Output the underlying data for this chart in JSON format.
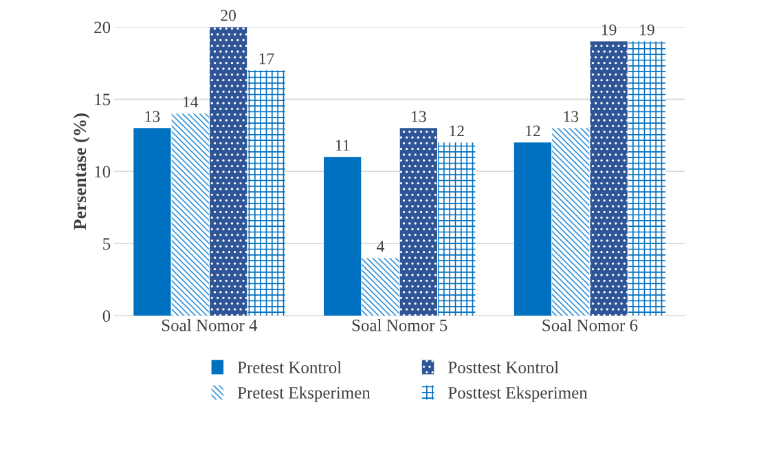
{
  "chart_data": {
    "type": "bar",
    "ylabel": "Persentase (%)",
    "categories": [
      "Soal Nomor 4",
      "Soal Nomor 5",
      "Soal Nomor 6"
    ],
    "series": [
      {
        "name": "Pretest Kontrol",
        "color": "#0070c0",
        "values": [
          13,
          11,
          12
        ]
      },
      {
        "name": "Pretest Eksperimen",
        "color": "#2e8fd6",
        "values": [
          14,
          4,
          13
        ]
      },
      {
        "name": "Posttest Kontrol",
        "color": "#2f5597",
        "values": [
          20,
          13,
          19
        ]
      },
      {
        "name": "Posttest Eksperimen",
        "color": "#0070c0",
        "values": [
          17,
          12,
          19
        ]
      }
    ],
    "ylim": [
      0,
      20
    ],
    "yticks": [
      0,
      5,
      10,
      15,
      20
    ],
    "grid": "y",
    "legend": "bottom",
    "data_labels": true
  }
}
